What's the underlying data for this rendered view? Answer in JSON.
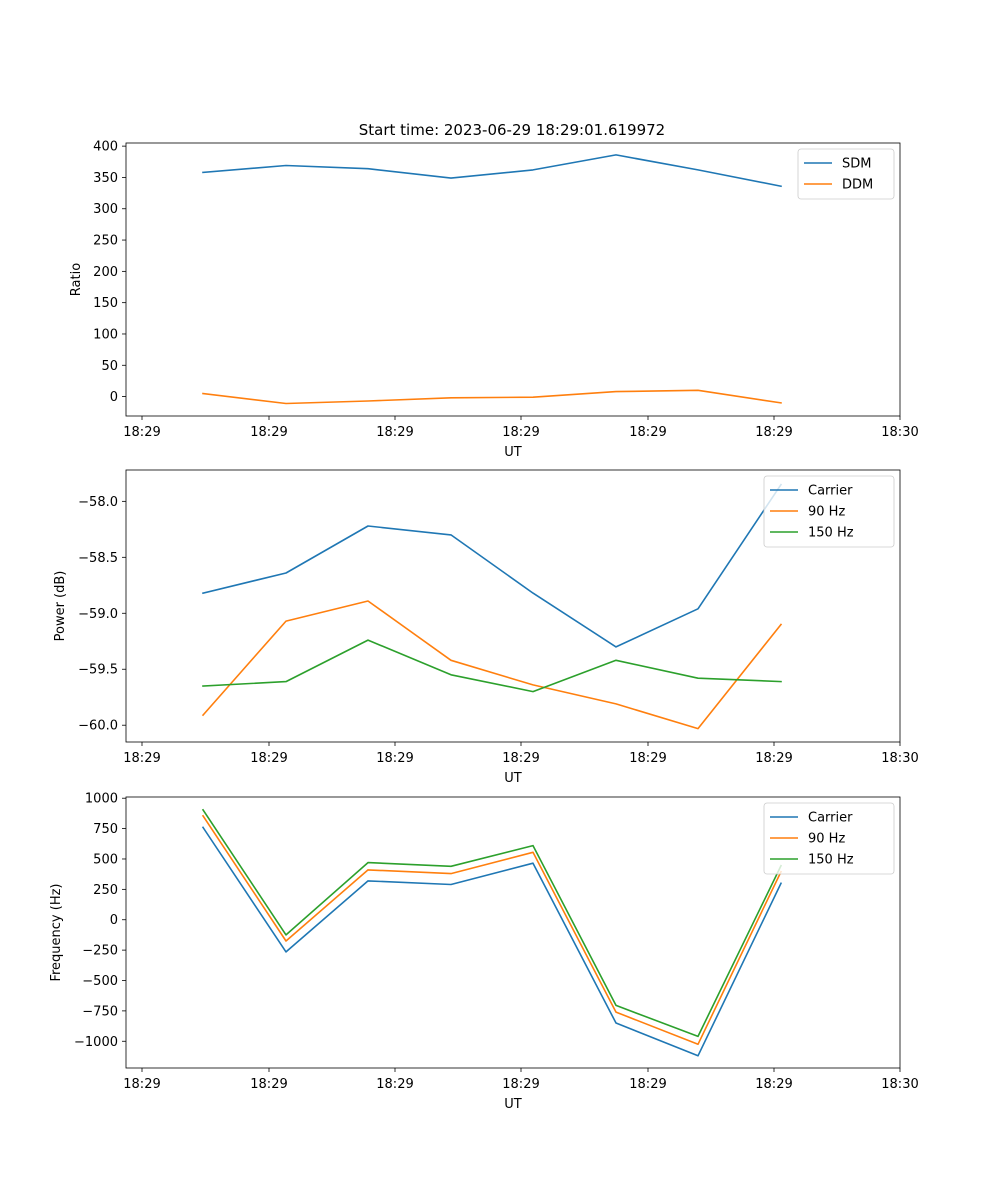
{
  "figure": {
    "title": "Start time: 2023-06-29 18:29:01.619972"
  },
  "chart_data": [
    {
      "type": "line",
      "title": "Start time: 2023-06-29 18:29:01.619972",
      "xlabel": "UT",
      "ylabel": "Ratio",
      "x_tick_labels": [
        "18:29",
        "18:29",
        "18:29",
        "18:29",
        "18:29",
        "18:29",
        "18:30"
      ],
      "y_ticks": [
        0,
        50,
        100,
        150,
        200,
        250,
        300,
        350,
        400
      ],
      "y_tick_labels": [
        "0",
        "50",
        "100",
        "150",
        "200",
        "250",
        "300",
        "350",
        "400"
      ],
      "ylim": [
        -31,
        405
      ],
      "legend_position": "top-right",
      "grid": false,
      "series": [
        {
          "name": "SDM",
          "color": "#1f77b4",
          "values": [
            358,
            369,
            364,
            349,
            362,
            386,
            362,
            336
          ]
        },
        {
          "name": "DDM",
          "color": "#ff7f0e",
          "values": [
            5,
            -11,
            -7,
            -2,
            -1,
            8,
            10,
            -10
          ]
        }
      ]
    },
    {
      "type": "line",
      "xlabel": "UT",
      "ylabel": "Power (dB)",
      "x_tick_labels": [
        "18:29",
        "18:29",
        "18:29",
        "18:29",
        "18:29",
        "18:29",
        "18:30"
      ],
      "y_ticks": [
        -60.0,
        -59.5,
        -59.0,
        -58.5,
        -58.0
      ],
      "y_tick_labels": [
        "−60.0",
        "−59.5",
        "−59.0",
        "−58.5",
        "−58.0"
      ],
      "ylim": [
        -60.15,
        -57.72
      ],
      "legend_position": "top-right",
      "grid": false,
      "series": [
        {
          "name": "Carrier",
          "color": "#1f77b4",
          "values": [
            -58.82,
            -58.64,
            -58.22,
            -58.3,
            -58.82,
            -59.3,
            -58.96,
            -57.85
          ]
        },
        {
          "name": "90 Hz",
          "color": "#ff7f0e",
          "values": [
            -59.91,
            -59.07,
            -58.89,
            -59.42,
            -59.64,
            -59.81,
            -60.03,
            -59.1
          ]
        },
        {
          "name": "150 Hz",
          "color": "#2ca02c",
          "values": [
            -59.65,
            -59.61,
            -59.24,
            -59.55,
            -59.7,
            -59.42,
            -59.58,
            -59.61
          ]
        }
      ]
    },
    {
      "type": "line",
      "xlabel": "UT",
      "ylabel": "Frequency (Hz)",
      "x_tick_labels": [
        "18:29",
        "18:29",
        "18:29",
        "18:29",
        "18:29",
        "18:29",
        "18:30"
      ],
      "y_ticks": [
        -1000,
        -750,
        -500,
        -250,
        0,
        250,
        500,
        750,
        1000
      ],
      "y_tick_labels": [
        "−1000",
        "−750",
        "−500",
        "−250",
        "0",
        "250",
        "500",
        "750",
        "1000"
      ],
      "ylim": [
        -1220,
        1010
      ],
      "legend_position": "top-right",
      "grid": false,
      "series": [
        {
          "name": "Carrier",
          "color": "#1f77b4",
          "values": [
            760,
            -265,
            320,
            290,
            465,
            -850,
            -1120,
            300
          ]
        },
        {
          "name": "90 Hz",
          "color": "#ff7f0e",
          "values": [
            855,
            -175,
            410,
            380,
            555,
            -760,
            -1025,
            395
          ]
        },
        {
          "name": "150 Hz",
          "color": "#2ca02c",
          "values": [
            905,
            -125,
            470,
            440,
            610,
            -705,
            -960,
            445
          ]
        }
      ]
    }
  ]
}
